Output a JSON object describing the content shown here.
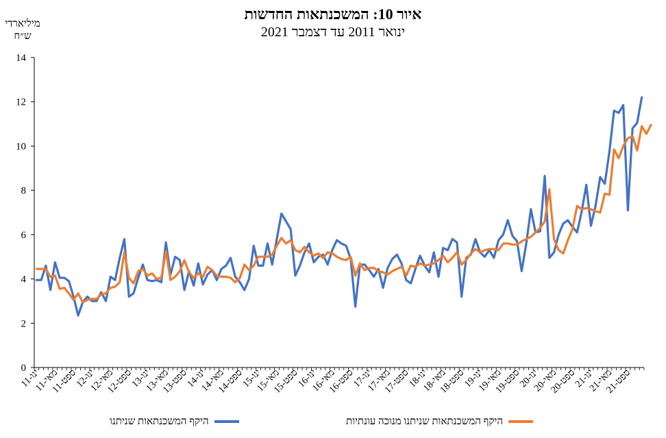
{
  "chart_data": {
    "type": "line",
    "title": "איור 10: המשכנתאות החדשות",
    "subtitle": "ינואר 2011 עד דצמבר 2021",
    "ylabel": "מיליארדי ש״ח",
    "xlabel": "",
    "ylim": [
      0,
      14
    ],
    "yticks": [
      0,
      2,
      4,
      6,
      8,
      10,
      12,
      14
    ],
    "grid": false,
    "legend_position": "bottom",
    "x_tick_labels": [
      "ינו-11",
      "מאי-11",
      "ספט-11",
      "ינו-12",
      "מאי-12",
      "ספט-12",
      "ינו-13",
      "מאי-13",
      "ספט-13",
      "ינו-14",
      "מאי-14",
      "ספט-14",
      "ינו-15",
      "מאי-15",
      "ספט-15",
      "ינו-16",
      "מאי-16",
      "ספט-16",
      "ינו-17",
      "מאי-17",
      "ספט-17",
      "ינו-18",
      "מאי-18",
      "ספט-18",
      "ינו-19",
      "מאי-19",
      "ספט-19",
      "ינו-20",
      "מאי-20",
      "ספט-20",
      "ינו-21",
      "מאי-21",
      "ספט-21"
    ],
    "x_start": "2011-01",
    "x_end": "2021-12",
    "series": [
      {
        "name": "היקף המשכנתאות שניתנו",
        "color": "#4472C4",
        "values": [
          3.95,
          3.95,
          4.6,
          3.5,
          4.75,
          4.05,
          4.05,
          3.9,
          3.2,
          2.35,
          2.95,
          3.2,
          3.0,
          3.0,
          3.4,
          3.0,
          4.1,
          3.95,
          4.95,
          5.8,
          3.2,
          3.35,
          4.05,
          4.65,
          3.95,
          3.9,
          3.95,
          3.85,
          5.65,
          4.2,
          5.0,
          4.85,
          3.5,
          4.35,
          3.7,
          4.7,
          3.75,
          4.2,
          4.4,
          3.95,
          4.45,
          4.6,
          4.95,
          4.1,
          3.85,
          3.5,
          4.0,
          5.5,
          4.6,
          4.6,
          5.6,
          4.65,
          5.8,
          6.95,
          6.6,
          6.25,
          4.15,
          4.6,
          5.2,
          5.6,
          4.75,
          5.0,
          5.1,
          4.65,
          5.3,
          5.75,
          5.6,
          5.5,
          4.9,
          2.75,
          4.65,
          4.65,
          4.4,
          4.1,
          4.45,
          3.6,
          4.5,
          4.9,
          5.1,
          4.7,
          3.95,
          3.8,
          4.45,
          5.05,
          4.6,
          4.3,
          5.2,
          4.1,
          5.4,
          5.3,
          5.8,
          5.65,
          3.2,
          4.95,
          5.1,
          5.8,
          5.2,
          5.0,
          5.3,
          4.95,
          5.75,
          6.0,
          6.65,
          5.95,
          5.7,
          4.35,
          5.6,
          7.15,
          6.1,
          6.15,
          8.65,
          4.95,
          5.2,
          6.0,
          6.5,
          6.65,
          6.35,
          6.1,
          7.05,
          8.25,
          6.4,
          7.3,
          8.6,
          8.3,
          9.75,
          11.6,
          11.5,
          11.85,
          7.1,
          10.8,
          11.05,
          12.2
        ]
      },
      {
        "name": "היקף המשכנתאות שניתנו מנוכה עונתיות",
        "color": "#ED7D31",
        "values": [
          4.45,
          4.45,
          4.45,
          4.1,
          4.15,
          3.55,
          3.6,
          3.35,
          3.05,
          3.35,
          2.95,
          3.05,
          3.1,
          3.1,
          3.3,
          3.35,
          3.6,
          3.65,
          3.85,
          5.2,
          4.05,
          3.8,
          4.35,
          4.45,
          4.15,
          4.25,
          4.0,
          4.05,
          5.25,
          3.95,
          4.1,
          4.35,
          4.85,
          4.3,
          4.05,
          4.25,
          4.1,
          4.55,
          4.4,
          4.15,
          4.1,
          4.1,
          4.05,
          3.85,
          4.05,
          4.65,
          4.4,
          4.6,
          5.0,
          5.0,
          5.0,
          5.1,
          5.5,
          5.85,
          5.6,
          5.75,
          5.3,
          5.2,
          5.45,
          5.2,
          5.05,
          5.15,
          4.95,
          5.2,
          5.15,
          5.0,
          4.9,
          4.85,
          5.0,
          4.15,
          4.7,
          4.4,
          4.5,
          4.5,
          4.35,
          4.3,
          4.2,
          4.35,
          4.45,
          4.55,
          4.15,
          4.6,
          4.55,
          4.7,
          4.6,
          4.65,
          4.7,
          4.85,
          5.05,
          4.75,
          4.95,
          5.2,
          4.65,
          4.85,
          5.15,
          5.35,
          5.2,
          5.3,
          5.35,
          5.35,
          5.3,
          5.6,
          5.6,
          5.55,
          5.55,
          5.7,
          5.8,
          5.9,
          6.1,
          6.3,
          6.6,
          8.05,
          5.8,
          5.3,
          5.15,
          5.75,
          6.25,
          7.3,
          7.15,
          7.2,
          7.15,
          7.05,
          7.0,
          7.85,
          7.8,
          9.85,
          9.45,
          10.0,
          10.35,
          10.45,
          9.8,
          10.9,
          10.55,
          10.95
        ]
      }
    ]
  }
}
